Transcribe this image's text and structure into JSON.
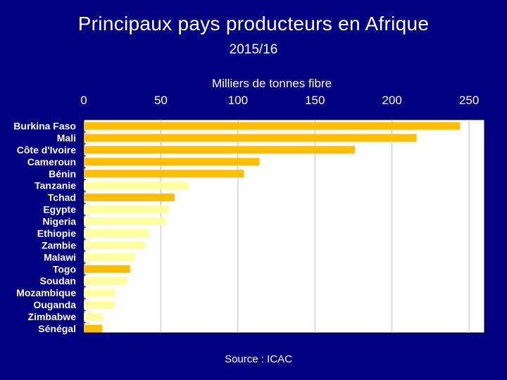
{
  "header": {
    "title": "Principaux pays producteurs en Afrique",
    "subtitle": "2015/16"
  },
  "footer": {
    "source": "Source : ICAC"
  },
  "colors": {
    "background": "#000080",
    "bar_dark": "#FFBE00",
    "bar_light": "#FFFFA0",
    "plot_area": "#FFFFFF",
    "gridline": "#C0C0C0"
  },
  "chart_data": {
    "type": "bar",
    "orientation": "horizontal",
    "title": "Principaux pays producteurs en Afrique",
    "subtitle": "2015/16",
    "xlabel": "Milliers de tonnes fibre",
    "ylabel": "",
    "xlim": [
      0,
      260
    ],
    "x_ticks": [
      0,
      50,
      100,
      150,
      200,
      250
    ],
    "x_axis_position": "top",
    "grid": true,
    "categories": [
      "Burkina Faso",
      "Mali",
      "Côte d'Ivoire",
      "Cameroun",
      "Bénin",
      "Tanzanie",
      "Tchad",
      "Egypte",
      "Nigeria",
      "Ethiopie",
      "Zambie",
      "Malawi",
      "Togo",
      "Soudan",
      "Mozambique",
      "Ouganda",
      "Zimbabwe",
      "Sénégal"
    ],
    "values": [
      244,
      216,
      176,
      114,
      104,
      68,
      59,
      55,
      53,
      42,
      40,
      33,
      30,
      28,
      20,
      20,
      12,
      12
    ],
    "bar_color_groups": [
      "dark",
      "dark",
      "dark",
      "dark",
      "dark",
      "light",
      "dark",
      "light",
      "light",
      "light",
      "light",
      "light",
      "dark",
      "light",
      "light",
      "light",
      "light",
      "dark"
    ]
  }
}
